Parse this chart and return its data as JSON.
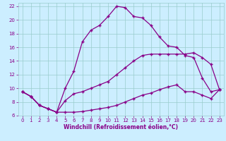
{
  "xlabel": "Windchill (Refroidissement éolien,°C)",
  "bg_color": "#cceeff",
  "line_color": "#880088",
  "grid_color": "#99cccc",
  "xlim": [
    -0.5,
    23.5
  ],
  "ylim": [
    6,
    22.5
  ],
  "xticks": [
    0,
    1,
    2,
    3,
    4,
    5,
    6,
    7,
    8,
    9,
    10,
    11,
    12,
    13,
    14,
    15,
    16,
    17,
    18,
    19,
    20,
    21,
    22,
    23
  ],
  "yticks": [
    6,
    8,
    10,
    12,
    14,
    16,
    18,
    20,
    22
  ],
  "line1_x": [
    0,
    1,
    2,
    3,
    4,
    5,
    6,
    7,
    8,
    9,
    10,
    11,
    12,
    13,
    14,
    15,
    16,
    17,
    18,
    19,
    20,
    21,
    22,
    23
  ],
  "line1_y": [
    9.5,
    8.8,
    7.5,
    7.0,
    6.5,
    6.5,
    6.5,
    6.6,
    6.8,
    7.0,
    7.2,
    7.5,
    8.0,
    8.5,
    9.0,
    9.3,
    9.8,
    10.2,
    10.5,
    9.5,
    9.5,
    9.0,
    8.5,
    9.8
  ],
  "line2_x": [
    0,
    1,
    2,
    3,
    4,
    5,
    6,
    7,
    8,
    9,
    10,
    11,
    12,
    13,
    14,
    15,
    16,
    17,
    18,
    19,
    20,
    21,
    22,
    23
  ],
  "line2_y": [
    9.5,
    8.8,
    7.5,
    7.0,
    6.5,
    8.2,
    9.2,
    9.5,
    10.0,
    10.5,
    11.0,
    12.0,
    13.0,
    14.0,
    14.8,
    15.0,
    15.0,
    15.0,
    15.0,
    15.0,
    15.2,
    14.5,
    13.5,
    9.8
  ],
  "line3_x": [
    0,
    1,
    2,
    3,
    4,
    5,
    6,
    7,
    8,
    9,
    10,
    11,
    12,
    13,
    14,
    15,
    16,
    17,
    18,
    19,
    20,
    21,
    22,
    23
  ],
  "line3_y": [
    9.5,
    8.8,
    7.5,
    7.0,
    6.5,
    10.0,
    12.5,
    16.8,
    18.5,
    19.2,
    20.5,
    22.0,
    21.8,
    20.5,
    20.3,
    19.2,
    17.5,
    16.2,
    16.0,
    14.8,
    14.5,
    11.5,
    9.5,
    9.8
  ]
}
